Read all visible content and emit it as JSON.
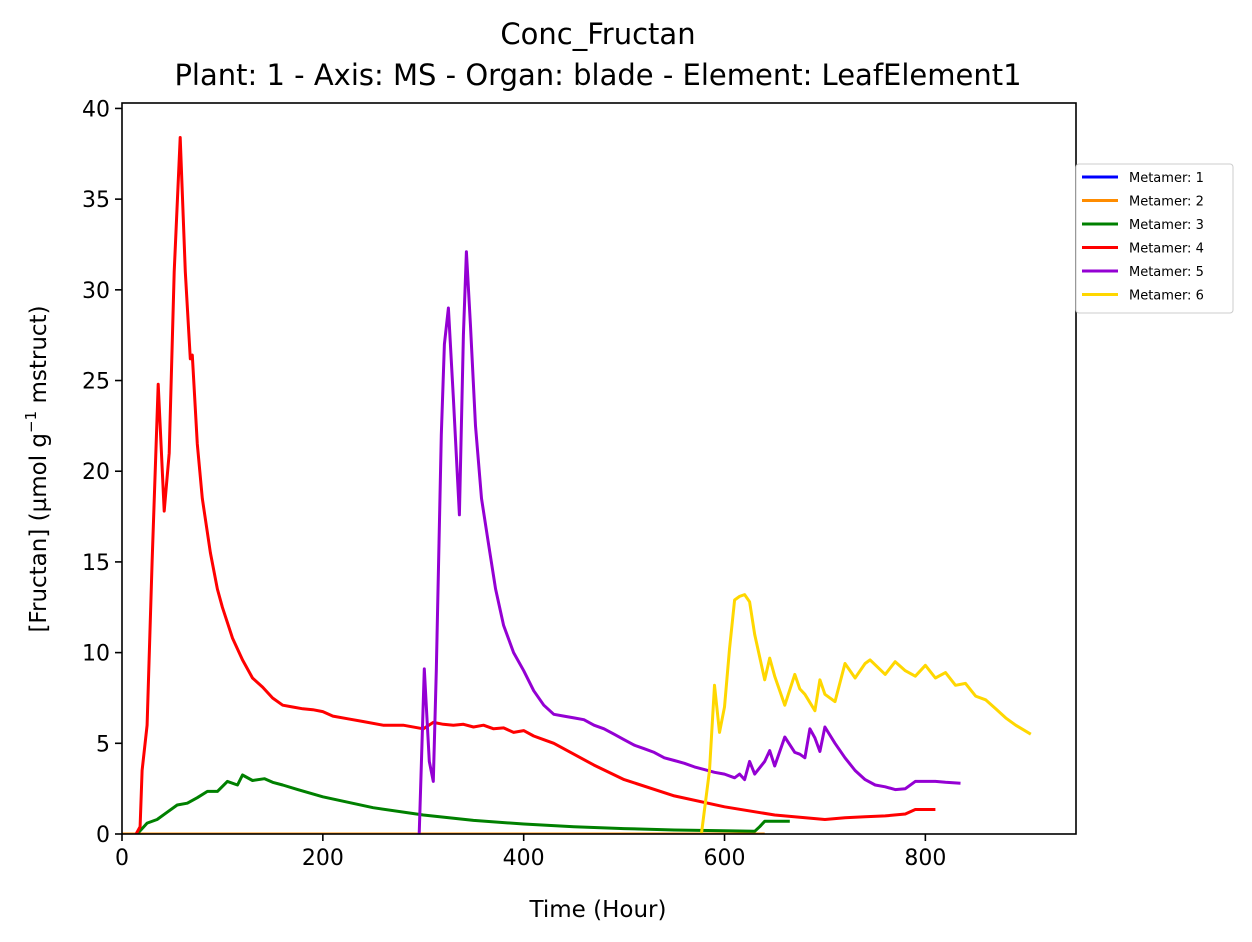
{
  "chart_data": {
    "type": "line",
    "title": "Conc_Fructan",
    "subtitle": "Plant: 1 - Axis: MS - Organ: blade - Element: LeafElement1",
    "xlabel": "Time (Hour)",
    "ylabel_parts": [
      "[Fructan] (µmol g",
      "−1",
      " mstruct)"
    ],
    "xlim": [
      0,
      950
    ],
    "ylim": [
      0,
      40.3
    ],
    "xticks": [
      0,
      200,
      400,
      600,
      800
    ],
    "yticks": [
      0,
      5,
      10,
      15,
      20,
      25,
      30,
      35,
      40
    ],
    "grid": false,
    "legend_position": "outside right, top",
    "series": [
      {
        "name": "Metamer: 1",
        "color": "#0000ff",
        "x": [],
        "y": []
      },
      {
        "name": "Metamer: 2",
        "color": "#ff8c00",
        "x": [
          0,
          100,
          200,
          300,
          400,
          500,
          600,
          640
        ],
        "y": [
          0,
          0,
          0,
          0,
          0,
          0,
          0,
          0
        ]
      },
      {
        "name": "Metamer: 3",
        "color": "#008000",
        "x": [
          15,
          20,
          25,
          35,
          45,
          55,
          65,
          75,
          85,
          95,
          105,
          115,
          120,
          130,
          142,
          150,
          160,
          175,
          200,
          250,
          300,
          350,
          400,
          450,
          500,
          550,
          600,
          630,
          635,
          640,
          665
        ],
        "y": [
          0,
          0.3,
          0.6,
          0.8,
          1.2,
          1.6,
          1.7,
          2.0,
          2.35,
          2.35,
          2.9,
          2.7,
          3.25,
          2.95,
          3.05,
          2.85,
          2.7,
          2.45,
          2.05,
          1.45,
          1.05,
          0.75,
          0.55,
          0.4,
          0.3,
          0.22,
          0.18,
          0.15,
          0.4,
          0.7,
          0.7
        ]
      },
      {
        "name": "Metamer: 4",
        "color": "#ff0000",
        "x": [
          14,
          18,
          20,
          25,
          30,
          36,
          42,
          47,
          52,
          58,
          63,
          68,
          70,
          75,
          80,
          88,
          95,
          100,
          110,
          120,
          130,
          140,
          150,
          160,
          170,
          180,
          190,
          200,
          210,
          225,
          240,
          260,
          280,
          300,
          310,
          320,
          330,
          340,
          350,
          360,
          370,
          380,
          390,
          400,
          410,
          420,
          430,
          450,
          470,
          500,
          550,
          600,
          650,
          700,
          720,
          740,
          760,
          780,
          790,
          800,
          810
        ],
        "y": [
          0,
          0.4,
          3.5,
          6,
          15,
          24.8,
          17.8,
          21,
          31,
          38.4,
          31,
          26.2,
          26.4,
          21.5,
          18.5,
          15.5,
          13.5,
          12.5,
          10.8,
          9.6,
          8.6,
          8.1,
          7.5,
          7.1,
          7.0,
          6.9,
          6.85,
          6.75,
          6.5,
          6.35,
          6.2,
          6.0,
          6.0,
          5.8,
          6.15,
          6.05,
          6.0,
          6.05,
          5.9,
          6.0,
          5.8,
          5.85,
          5.6,
          5.7,
          5.4,
          5.2,
          5.0,
          4.4,
          3.8,
          3.0,
          2.1,
          1.5,
          1.05,
          0.8,
          0.9,
          0.95,
          1.0,
          1.1,
          1.35,
          1.35,
          1.35
        ]
      },
      {
        "name": "Metamer: 5",
        "color": "#9400d3",
        "x": [
          296,
          301,
          306,
          310,
          313,
          318,
          321,
          325,
          330,
          336,
          340,
          343,
          347,
          352,
          358,
          365,
          372,
          380,
          390,
          400,
          410,
          420,
          430,
          440,
          450,
          460,
          470,
          480,
          490,
          500,
          510,
          520,
          530,
          540,
          550,
          560,
          570,
          580,
          590,
          600,
          610,
          615,
          620,
          625,
          630,
          640,
          645,
          650,
          660,
          670,
          675,
          680,
          685,
          690,
          695,
          700,
          710,
          720,
          730,
          740,
          750,
          760,
          770,
          780,
          790,
          800,
          810,
          820,
          835
        ],
        "y": [
          0,
          9.1,
          4.0,
          2.9,
          9.0,
          22.0,
          27.0,
          29.0,
          24.0,
          17.6,
          27.5,
          32.1,
          28.0,
          22.5,
          18.5,
          16.0,
          13.5,
          11.5,
          10.0,
          9.0,
          7.9,
          7.1,
          6.6,
          6.5,
          6.4,
          6.3,
          6.0,
          5.8,
          5.5,
          5.2,
          4.9,
          4.7,
          4.5,
          4.2,
          4.05,
          3.9,
          3.7,
          3.55,
          3.4,
          3.3,
          3.1,
          3.3,
          3.0,
          4.0,
          3.3,
          4.0,
          4.6,
          3.75,
          5.35,
          4.5,
          4.4,
          4.2,
          5.8,
          5.3,
          4.55,
          5.9,
          5.0,
          4.2,
          3.5,
          3.0,
          2.7,
          2.6,
          2.45,
          2.5,
          2.9,
          2.9,
          2.9,
          2.85,
          2.8
        ]
      },
      {
        "name": "Metamer: 6",
        "color": "#ffd700",
        "x": [
          577,
          585,
          590,
          595,
          600,
          605,
          610,
          615,
          620,
          625,
          630,
          640,
          645,
          650,
          660,
          670,
          675,
          680,
          690,
          695,
          700,
          710,
          720,
          730,
          740,
          745,
          760,
          770,
          780,
          790,
          800,
          810,
          820,
          830,
          840,
          850,
          860,
          870,
          880,
          890,
          905
        ],
        "y": [
          0,
          3.5,
          8.2,
          5.6,
          7.0,
          10.2,
          12.9,
          13.1,
          13.2,
          12.8,
          11.0,
          8.5,
          9.7,
          8.7,
          7.1,
          8.8,
          8.0,
          7.7,
          6.8,
          8.5,
          7.7,
          7.3,
          9.4,
          8.6,
          9.4,
          9.6,
          8.8,
          9.5,
          9.0,
          8.7,
          9.3,
          8.6,
          8.9,
          8.2,
          8.3,
          7.6,
          7.4,
          6.9,
          6.4,
          6.0,
          5.5
        ]
      }
    ]
  }
}
